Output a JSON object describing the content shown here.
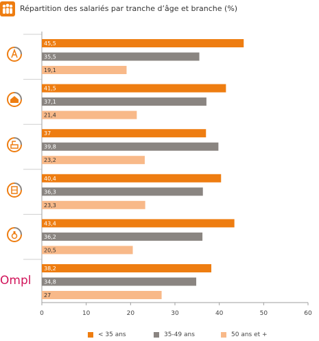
{
  "header": {
    "title": "Répartition des salariés par tranche d’âge et branche (%)",
    "icon": "people-group-icon"
  },
  "colors": {
    "under35": "#ee7d11",
    "age35to49": "#8a8581",
    "over50": "#f8b989",
    "axis": "#9e9e9e",
    "grid": "#d9d9d9"
  },
  "chart_data": {
    "type": "bar",
    "orientation": "horizontal",
    "title": "Répartition des salariés par tranche d’âge et branche (%)",
    "xlim": [
      0,
      60
    ],
    "xticks": [
      0,
      10,
      20,
      30,
      40,
      50,
      60
    ],
    "legend_position": "bottom",
    "categories": [
      {
        "icon": "fashion-design-icon",
        "label": ""
      },
      {
        "icon": "home-furnishing-icon",
        "label": ""
      },
      {
        "icon": "workshop-machine-icon",
        "label": ""
      },
      {
        "icon": "building-materials-icon",
        "label": ""
      },
      {
        "icon": "fragrance-bottle-icon",
        "label": ""
      },
      {
        "icon": "ompl-logo",
        "label": "Ompl"
      }
    ],
    "series": [
      {
        "name": "< 35 ans",
        "color": "#ee7d11",
        "values": [
          45.5,
          41.5,
          37,
          40.4,
          43.4,
          38.2
        ],
        "labels": [
          "45,5",
          "41,5",
          "37",
          "40,4",
          "43,4",
          "38,2"
        ]
      },
      {
        "name": "35-49 ans",
        "color": "#8a8581",
        "values": [
          35.5,
          37.1,
          39.8,
          36.3,
          36.2,
          34.8
        ],
        "labels": [
          "35,5",
          "37,1",
          "39,8",
          "36,3",
          "36,2",
          "34,8"
        ]
      },
      {
        "name": "50 ans et +",
        "color": "#f8b989",
        "values": [
          19.1,
          21.4,
          23.2,
          23.3,
          20.5,
          27
        ],
        "labels": [
          "19,1",
          "21,4",
          "23,2",
          "23,3",
          "20,5",
          "27"
        ]
      }
    ]
  }
}
